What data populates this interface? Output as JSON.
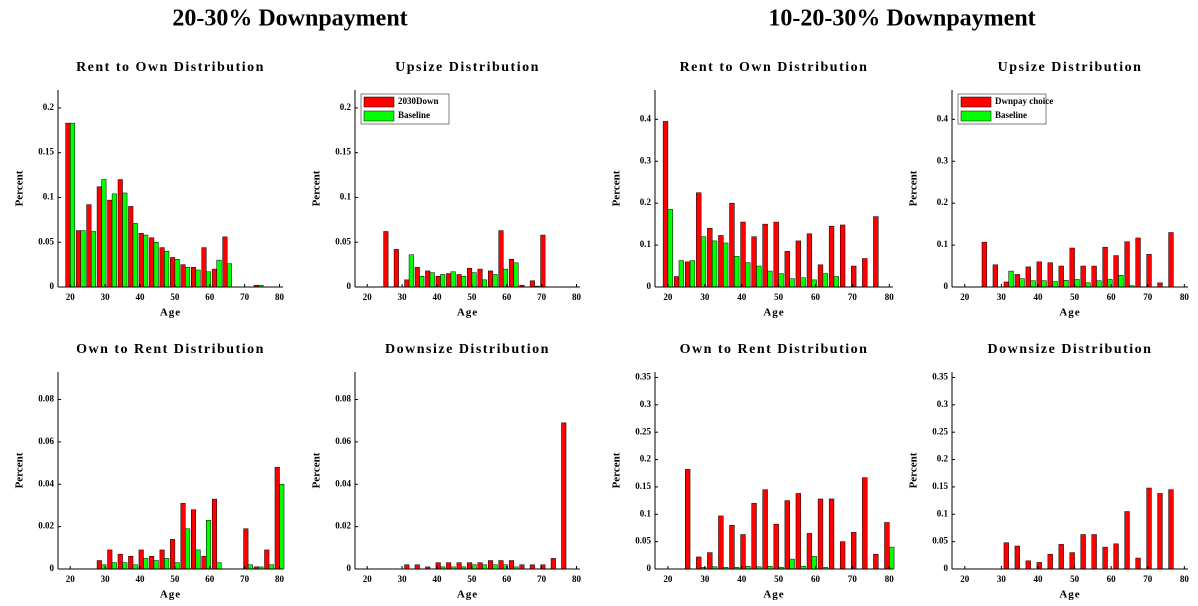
{
  "figure_titles": [
    "20-30% Downpayment",
    "10-20-30% Downpayment"
  ],
  "chart_data": [
    {
      "type": "bar",
      "title": "Rent to Own Distribution",
      "xlabel": "Age",
      "ylabel": "Percent",
      "x": [
        20,
        23,
        26,
        29,
        32,
        35,
        38,
        41,
        44,
        47,
        50,
        53,
        56,
        59,
        62,
        65,
        68,
        71,
        74,
        77,
        80
      ],
      "series": [
        {
          "color": "#ff0000",
          "values": [
            0.183,
            0.063,
            0.092,
            0.112,
            0.097,
            0.12,
            0.09,
            0.06,
            0.055,
            0.044,
            0.033,
            0.025,
            0.022,
            0.044,
            0.02,
            0.056,
            0,
            0,
            0.002,
            0,
            0
          ]
        },
        {
          "color": "#00ff00",
          "values": [
            0.183,
            0.063,
            0.062,
            0.12,
            0.104,
            0.105,
            0.071,
            0.058,
            0.05,
            0.04,
            0.031,
            0.022,
            0.019,
            0.017,
            0.03,
            0.026,
            0,
            0,
            0.002,
            0,
            0
          ]
        }
      ],
      "xlim": [
        16.5,
        81
      ],
      "xticks": [
        20,
        30,
        40,
        50,
        60,
        70,
        80
      ],
      "ylim": [
        0,
        0.22
      ],
      "yticks": [
        0,
        0.05,
        0.1,
        0.15,
        0.2
      ]
    },
    {
      "type": "bar",
      "title": "Upsize Distribution",
      "xlabel": "Age",
      "ylabel": "Percent",
      "x": [
        20,
        23,
        26,
        29,
        32,
        35,
        38,
        41,
        44,
        47,
        50,
        53,
        56,
        59,
        62,
        65,
        68,
        71,
        74,
        77,
        80
      ],
      "series": [
        {
          "name": "2030Down",
          "color": "#ff0000",
          "values": [
            0,
            0,
            0.062,
            0.042,
            0.008,
            0.022,
            0.018,
            0.012,
            0.015,
            0.014,
            0.021,
            0.02,
            0.018,
            0.063,
            0.031,
            0.002,
            0.007,
            0.058,
            0,
            0,
            0
          ]
        },
        {
          "name": "Baseline",
          "color": "#00ff00",
          "values": [
            0,
            0,
            0,
            0,
            0.036,
            0.012,
            0.016,
            0.014,
            0.017,
            0.012,
            0.016,
            0.008,
            0.014,
            0.02,
            0.027,
            0,
            0.001,
            0,
            0,
            0,
            0
          ]
        }
      ],
      "legend": "upper left",
      "xlim": [
        16.5,
        81
      ],
      "xticks": [
        20,
        30,
        40,
        50,
        60,
        70,
        80
      ],
      "ylim": [
        0,
        0.22
      ],
      "yticks": [
        0,
        0.05,
        0.1,
        0.15,
        0.2
      ]
    },
    {
      "type": "bar",
      "title": "Own to Rent Distribution",
      "xlabel": "Age",
      "ylabel": "Percent",
      "x": [
        20,
        23,
        26,
        29,
        32,
        35,
        38,
        41,
        44,
        47,
        50,
        53,
        56,
        59,
        62,
        65,
        68,
        71,
        74,
        77,
        80
      ],
      "series": [
        {
          "color": "#ff0000",
          "values": [
            0,
            0,
            0,
            0.004,
            0.009,
            0.007,
            0.006,
            0.009,
            0.006,
            0.009,
            0.014,
            0.031,
            0.028,
            0.006,
            0.033,
            0,
            0,
            0.019,
            0.001,
            0.009,
            0.048
          ]
        },
        {
          "color": "#00ff00",
          "values": [
            0,
            0,
            0,
            0.002,
            0.003,
            0.003,
            0.002,
            0.005,
            0.004,
            0.005,
            0.003,
            0.019,
            0.009,
            0.023,
            0.003,
            0,
            0,
            0.002,
            0.001,
            0.002,
            0.04
          ]
        }
      ],
      "xlim": [
        16.5,
        81
      ],
      "xticks": [
        20,
        30,
        40,
        50,
        60,
        70,
        80
      ],
      "ylim": [
        0,
        0.093
      ],
      "yticks": [
        0,
        0.02,
        0.04,
        0.06,
        0.08
      ]
    },
    {
      "type": "bar",
      "title": "Downsize Distribution",
      "xlabel": "Age",
      "ylabel": "Percent",
      "x": [
        20,
        23,
        26,
        29,
        32,
        35,
        38,
        41,
        44,
        47,
        50,
        53,
        56,
        59,
        62,
        65,
        68,
        71,
        74,
        77,
        80
      ],
      "series": [
        {
          "color": "#ff0000",
          "values": [
            0,
            0,
            0,
            0,
            0.002,
            0.002,
            0.001,
            0.003,
            0.003,
            0.003,
            0.003,
            0.003,
            0.004,
            0.004,
            0.004,
            0.002,
            0.002,
            0.002,
            0.005,
            0.069,
            0
          ]
        },
        {
          "color": "#00ff00",
          "values": [
            0,
            0,
            0,
            0,
            0,
            0,
            0,
            0.001,
            0.001,
            0.001,
            0.002,
            0.002,
            0.002,
            0.002,
            0.001,
            0,
            0,
            0,
            0,
            0,
            0
          ]
        }
      ],
      "xlim": [
        16.5,
        81
      ],
      "xticks": [
        20,
        30,
        40,
        50,
        60,
        70,
        80
      ],
      "ylim": [
        0,
        0.093
      ],
      "yticks": [
        0,
        0.02,
        0.04,
        0.06,
        0.08
      ]
    },
    {
      "type": "bar",
      "title": "Rent to Own Distribution",
      "xlabel": "Age",
      "ylabel": "Percent",
      "x": [
        20,
        23,
        26,
        29,
        32,
        35,
        38,
        41,
        44,
        47,
        50,
        53,
        56,
        59,
        62,
        65,
        68,
        71,
        74,
        77,
        80
      ],
      "series": [
        {
          "color": "#ff0000",
          "values": [
            0.395,
            0.025,
            0.06,
            0.225,
            0.14,
            0.123,
            0.2,
            0.155,
            0.12,
            0.15,
            0.155,
            0.085,
            0.11,
            0.127,
            0.053,
            0.145,
            0.148,
            0.05,
            0.068,
            0.168,
            0
          ]
        },
        {
          "color": "#00ff00",
          "values": [
            0.185,
            0.063,
            0.063,
            0.12,
            0.11,
            0.105,
            0.073,
            0.058,
            0.05,
            0.038,
            0.032,
            0.02,
            0.022,
            0.017,
            0.032,
            0.025,
            0,
            0,
            0,
            0,
            0
          ]
        }
      ],
      "xlim": [
        16.5,
        81
      ],
      "xticks": [
        20,
        30,
        40,
        50,
        60,
        70,
        80
      ],
      "ylim": [
        0,
        0.47
      ],
      "yticks": [
        0,
        0.1,
        0.2,
        0.3,
        0.4
      ]
    },
    {
      "type": "bar",
      "title": "Upsize Distribution",
      "xlabel": "Age",
      "ylabel": "Percent",
      "x": [
        20,
        23,
        26,
        29,
        32,
        35,
        38,
        41,
        44,
        47,
        50,
        53,
        56,
        59,
        62,
        65,
        68,
        71,
        74,
        77,
        80
      ],
      "series": [
        {
          "name": "Dwnpay choice",
          "color": "#ff0000",
          "values": [
            0,
            0,
            0.107,
            0.053,
            0.012,
            0.03,
            0.048,
            0.06,
            0.058,
            0.05,
            0.093,
            0.05,
            0.05,
            0.095,
            0.075,
            0.108,
            0.117,
            0.078,
            0.01,
            0.13,
            0
          ]
        },
        {
          "name": "Baseline",
          "color": "#00ff00",
          "values": [
            0,
            0,
            0,
            0,
            0.038,
            0.02,
            0.015,
            0.015,
            0.013,
            0.016,
            0.018,
            0.01,
            0.015,
            0.018,
            0.028,
            0.003,
            0,
            0,
            0,
            0,
            0
          ]
        }
      ],
      "legend": "upper left",
      "xlim": [
        16.5,
        81
      ],
      "xticks": [
        20,
        30,
        40,
        50,
        60,
        70,
        80
      ],
      "ylim": [
        0,
        0.47
      ],
      "yticks": [
        0,
        0.1,
        0.2,
        0.3,
        0.4
      ]
    },
    {
      "type": "bar",
      "title": "Own to Rent Distribution",
      "xlabel": "Age",
      "ylabel": "Percent",
      "x": [
        20,
        23,
        26,
        29,
        32,
        35,
        38,
        41,
        44,
        47,
        50,
        53,
        56,
        59,
        62,
        65,
        68,
        71,
        74,
        77,
        80
      ],
      "series": [
        {
          "color": "#ff0000",
          "values": [
            0,
            0,
            0.182,
            0.022,
            0.03,
            0.097,
            0.08,
            0.063,
            0.12,
            0.145,
            0.082,
            0.125,
            0.138,
            0.065,
            0.128,
            0.128,
            0.05,
            0.067,
            0.167,
            0.027,
            0.085
          ]
        },
        {
          "color": "#00ff00",
          "values": [
            0,
            0,
            0,
            0.003,
            0.004,
            0.003,
            0.003,
            0.005,
            0.004,
            0.005,
            0.003,
            0.018,
            0.005,
            0.023,
            0.003,
            0,
            0,
            0,
            0,
            0,
            0.04
          ]
        }
      ],
      "xlim": [
        16.5,
        81
      ],
      "xticks": [
        20,
        30,
        40,
        50,
        60,
        70,
        80
      ],
      "ylim": [
        0,
        0.36
      ],
      "yticks": [
        0,
        0.05,
        0.1,
        0.15,
        0.2,
        0.25,
        0.3,
        0.35
      ]
    },
    {
      "type": "bar",
      "title": "Downsize Distribution",
      "xlabel": "Age",
      "ylabel": "Percent",
      "x": [
        20,
        23,
        26,
        29,
        32,
        35,
        38,
        41,
        44,
        47,
        50,
        53,
        56,
        59,
        62,
        65,
        68,
        71,
        74,
        77,
        80
      ],
      "series": [
        {
          "color": "#ff0000",
          "values": [
            0,
            0,
            0,
            0,
            0.048,
            0.042,
            0.015,
            0.012,
            0.027,
            0.045,
            0.03,
            0.063,
            0.063,
            0.04,
            0.046,
            0.105,
            0.02,
            0.148,
            0.138,
            0.145,
            0
          ]
        },
        {
          "color": "#00ff00",
          "values": [
            0,
            0,
            0,
            0,
            0,
            0,
            0,
            0,
            0,
            0,
            0,
            0,
            0,
            0,
            0,
            0,
            0,
            0,
            0,
            0,
            0
          ]
        }
      ],
      "xlim": [
        16.5,
        81
      ],
      "xticks": [
        20,
        30,
        40,
        50,
        60,
        70,
        80
      ],
      "ylim": [
        0,
        0.36
      ],
      "yticks": [
        0,
        0.05,
        0.1,
        0.15,
        0.2,
        0.25,
        0.3,
        0.35
      ]
    }
  ]
}
